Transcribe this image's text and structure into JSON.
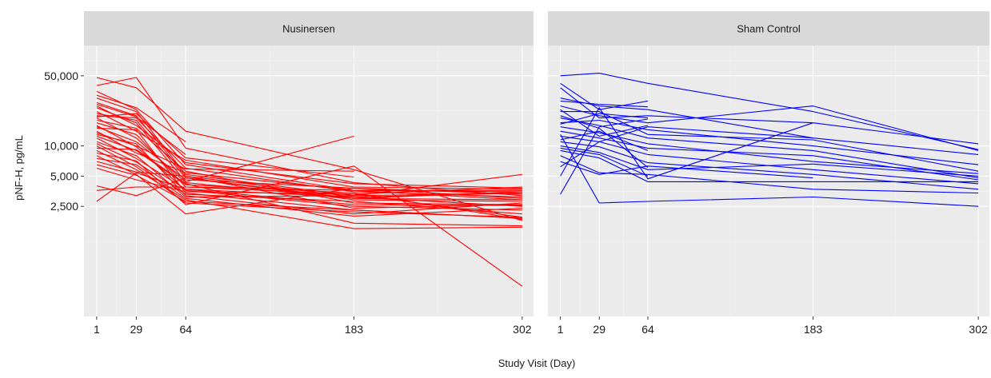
{
  "chart_data": {
    "type": "line",
    "facet_layout": "1 row x 2 columns",
    "xlabel": "Study Visit (Day)",
    "ylabel": "pNF-H, pg/mL",
    "y_scale": "log",
    "ylim": [
      200,
      100000
    ],
    "xlim": [
      -8,
      310
    ],
    "x_ticks": [
      1,
      29,
      64,
      183,
      302
    ],
    "y_ticks": [
      2500,
      5000,
      10000,
      50000
    ],
    "y_tick_labels": [
      "2,500",
      "5,000",
      "10,000",
      "50,000"
    ],
    "grid": true,
    "legend": "none",
    "panels": [
      {
        "strip_label": "Nusinersen",
        "line_color": "#ff0000",
        "series": [
          {
            "x": [
              1,
              29,
              64,
              183,
              302
            ],
            "y": [
              48000,
              38000,
              14000,
              5800,
              1800
            ]
          },
          {
            "x": [
              1,
              29,
              64,
              183,
              302
            ],
            "y": [
              40000,
              48000,
              9500,
              4300,
              3200
            ]
          },
          {
            "x": [
              1,
              29,
              64,
              183,
              302
            ],
            "y": [
              35000,
              23000,
              6500,
              3600,
              2900
            ]
          },
          {
            "x": [
              1,
              29,
              64,
              183,
              302
            ],
            "y": [
              30000,
              22000,
              5200,
              3200,
              3400
            ]
          },
          {
            "x": [
              1,
              29,
              64,
              183,
              302
            ],
            "y": [
              27000,
              20000,
              5000,
              3100,
              2500
            ]
          },
          {
            "x": [
              1,
              29,
              64,
              183,
              302
            ],
            "y": [
              25000,
              16000,
              6800,
              4200,
              3800
            ]
          },
          {
            "x": [
              1,
              29,
              64,
              183,
              302
            ],
            "y": [
              22000,
              14000,
              7200,
              3900,
              3700
            ]
          },
          {
            "x": [
              1,
              29,
              64,
              183,
              302
            ],
            "y": [
              21000,
              18000,
              4800,
              2900,
              2800
            ]
          },
          {
            "x": [
              1,
              29,
              64,
              183,
              302
            ],
            "y": [
              20000,
              19000,
              6000,
              3500,
              3100
            ]
          },
          {
            "x": [
              1,
              29,
              64,
              183,
              302
            ],
            "y": [
              19000,
              12000,
              4300,
              3000,
              3500
            ]
          },
          {
            "x": [
              1,
              29,
              64,
              183,
              302
            ],
            "y": [
              18000,
              15000,
              5600,
              2700,
              2600
            ]
          },
          {
            "x": [
              1,
              29,
              64,
              183,
              302
            ],
            "y": [
              17000,
              13000,
              3900,
              3300,
              1950
            ]
          },
          {
            "x": [
              1,
              29,
              64,
              183,
              302
            ],
            "y": [
              16000,
              9800,
              3600,
              2500,
              2300
            ]
          },
          {
            "x": [
              1,
              29,
              64,
              183,
              302
            ],
            "y": [
              15500,
              11000,
              4600,
              3800,
              3000
            ]
          },
          {
            "x": [
              1,
              29,
              64,
              183,
              302
            ],
            "y": [
              15000,
              14500,
              3400,
              2300,
              1900
            ]
          },
          {
            "x": [
              1,
              29,
              64,
              183,
              302
            ],
            "y": [
              14000,
              8500,
              5400,
              3600,
              3600
            ]
          },
          {
            "x": [
              1,
              29,
              64,
              183,
              302
            ],
            "y": [
              13000,
              10500,
              3200,
              2100,
              2700
            ]
          },
          {
            "x": [
              1,
              29,
              64,
              183,
              302
            ],
            "y": [
              12500,
              9000,
              4100,
              3400,
              1850
            ]
          },
          {
            "x": [
              1,
              29,
              64,
              183,
              302
            ],
            "y": [
              12000,
              7500,
              3700,
              2600,
              2550
            ]
          },
          {
            "x": [
              1,
              29,
              64,
              183,
              302
            ],
            "y": [
              11000,
              8000,
              3100,
              3200,
              5200
            ]
          },
          {
            "x": [
              1,
              29,
              64,
              183,
              302
            ],
            "y": [
              10500,
              6900,
              3300,
              2800,
              2100
            ]
          },
          {
            "x": [
              1,
              29,
              64,
              183,
              302
            ],
            "y": [
              10000,
              6200,
              2700,
              2200,
              1950
            ]
          },
          {
            "x": [
              1,
              29,
              64,
              183,
              302
            ],
            "y": [
              9500,
              9200,
              4200,
              1700,
              1600
            ]
          },
          {
            "x": [
              1,
              29,
              64,
              183,
              302
            ],
            "y": [
              9000,
              5800,
              2900,
              1500,
              1550
            ]
          },
          {
            "x": [
              1,
              29,
              64,
              183,
              302
            ],
            "y": [
              8500,
              7100,
              2600,
              6300,
              400
            ]
          },
          {
            "x": [
              1,
              29,
              64,
              183,
              302
            ],
            "y": [
              8000,
              5200,
              2100,
              3800,
              3300
            ]
          },
          {
            "x": [
              1,
              29,
              64,
              183,
              302
            ],
            "y": [
              7500,
              6500,
              3000,
              2000,
              2400
            ]
          },
          {
            "x": [
              1,
              29,
              64,
              183,
              302
            ],
            "y": [
              7000,
              5500,
              5000,
              2400,
              2600
            ]
          },
          {
            "x": [
              1,
              29,
              64,
              183,
              302
            ],
            "y": [
              6500,
              5100,
              2800,
              2300,
              1900
            ]
          },
          {
            "x": [
              1,
              29,
              64,
              183,
              302
            ],
            "y": [
              6000,
              4600,
              3500,
              3300,
              3900
            ]
          },
          {
            "x": [
              1,
              29,
              64,
              183,
              302
            ],
            "y": [
              4000,
              3200,
              4800,
              3000,
              2900
            ]
          },
          {
            "x": [
              1,
              29,
              64,
              183,
              302
            ],
            "y": [
              3600,
              3900,
              3900,
              3600,
              3500
            ]
          },
          {
            "x": [
              1,
              29,
              64,
              183,
              302
            ],
            "y": [
              2800,
              5400,
              3700,
              3100,
              3400
            ]
          },
          {
            "x": [
              1,
              29,
              64,
              183
            ],
            "y": [
              24000,
              17000,
              4400,
              12500
            ]
          },
          {
            "x": [
              1,
              29,
              64,
              183
            ],
            "y": [
              13500,
              10000,
              5900,
              5600
            ]
          },
          {
            "x": [
              1,
              29,
              64,
              183
            ],
            "y": [
              19500,
              21000,
              7600,
              4900
            ]
          },
          {
            "x": [
              1,
              29,
              64
            ],
            "y": [
              32000,
              24000,
              11000
            ]
          },
          {
            "x": [
              1,
              29,
              64
            ],
            "y": [
              26000,
              19500,
              8200
            ]
          }
        ]
      },
      {
        "strip_label": "Sham Control",
        "line_color": "#0000ff",
        "series": [
          {
            "x": [
              1,
              29,
              64,
              183,
              302
            ],
            "y": [
              50000,
              53000,
              42000,
              22000,
              9200
            ]
          },
          {
            "x": [
              1,
              29,
              64,
              183,
              302
            ],
            "y": [
              38000,
              19000,
              20000,
              17000,
              10500
            ]
          },
          {
            "x": [
              1,
              29,
              64,
              183,
              302
            ],
            "y": [
              30000,
              25000,
              23000,
              12000,
              8200
            ]
          },
          {
            "x": [
              1,
              29,
              64,
              183,
              302
            ],
            "y": [
              25000,
              20000,
              17000,
              25000,
              9000
            ]
          },
          {
            "x": [
              1,
              29,
              64,
              183,
              302
            ],
            "y": [
              22000,
              22000,
              13000,
              11500,
              5600
            ]
          },
          {
            "x": [
              1,
              29,
              64,
              183,
              302
            ],
            "y": [
              19000,
              16000,
              12000,
              9000,
              4800
            ]
          },
          {
            "x": [
              1,
              29,
              64,
              183,
              302
            ],
            "y": [
              17000,
              18000,
              14500,
              10000,
              6500
            ]
          },
          {
            "x": [
              1,
              29,
              64,
              183,
              302
            ],
            "y": [
              15500,
              13500,
              10500,
              7000,
              5300
            ]
          },
          {
            "x": [
              1,
              29,
              64,
              183,
              302
            ],
            "y": [
              14000,
              12000,
              9500,
              8000,
              4600
            ]
          },
          {
            "x": [
              1,
              29,
              64,
              183,
              302
            ],
            "y": [
              12500,
              11000,
              8200,
              5800,
              4200
            ]
          },
          {
            "x": [
              1,
              29,
              64,
              183,
              302
            ],
            "y": [
              11000,
              9800,
              6800,
              5200,
              3700
            ]
          },
          {
            "x": [
              1,
              29,
              64,
              183,
              302
            ],
            "y": [
              10000,
              8600,
              5800,
              6600,
              5000
            ]
          },
          {
            "x": [
              1,
              29,
              64,
              183,
              302
            ],
            "y": [
              9000,
              7600,
              4400,
              4400,
              4400
            ]
          },
          {
            "x": [
              1,
              29,
              64,
              183,
              302
            ],
            "y": [
              8000,
              5400,
              5200,
              3700,
              3400
            ]
          },
          {
            "x": [
              1,
              29,
              64,
              183,
              302
            ],
            "y": [
              13000,
              2700,
              2800,
              3100,
              2500
            ]
          },
          {
            "x": [
              1,
              29,
              64,
              183
            ],
            "y": [
              5000,
              24000,
              4700,
              17000
            ]
          },
          {
            "x": [
              1,
              29,
              64,
              183
            ],
            "y": [
              7000,
              5200,
              6300,
              4800
            ]
          },
          {
            "x": [
              1,
              29,
              64,
              183
            ],
            "y": [
              6200,
              11000,
              15500,
              12000
            ]
          },
          {
            "x": [
              1,
              29,
              64
            ],
            "y": [
              20000,
              15000,
              6100
            ]
          },
          {
            "x": [
              1,
              29,
              64
            ],
            "y": [
              3300,
              15500,
              18500
            ]
          },
          {
            "x": [
              1,
              29,
              64
            ],
            "y": [
              28000,
              26000,
              24500
            ]
          },
          {
            "x": [
              1,
              29,
              64
            ],
            "y": [
              42000,
              23000,
              28000
            ]
          },
          {
            "x": [
              1,
              29,
              64
            ],
            "y": [
              16500,
              21000,
              19000
            ]
          },
          {
            "x": [
              1,
              29,
              64
            ],
            "y": [
              11500,
              14000,
              9000
            ]
          },
          {
            "x": [
              1,
              29,
              64
            ],
            "y": [
              9500,
              8200,
              5000
            ]
          },
          {
            "x": [
              1,
              29,
              64
            ],
            "y": [
              23000,
              12500,
              16000
            ]
          }
        ]
      }
    ]
  }
}
